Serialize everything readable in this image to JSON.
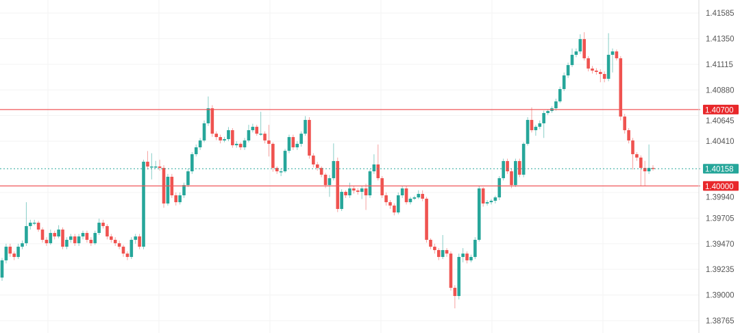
{
  "chart_data": {
    "type": "candlestick",
    "title": "",
    "xlabel": "",
    "ylabel": "",
    "ylim": [
      1.387,
      1.417
    ],
    "y_ticks": [
      "1.41585",
      "1.41350",
      "1.41115",
      "1.40880",
      "1.40645",
      "1.40410",
      "1.39940",
      "1.39705",
      "1.39470",
      "1.39235",
      "1.39000",
      "1.38765"
    ],
    "grid": true,
    "colors": {
      "up": "#26a69a",
      "down": "#ef5350",
      "level_line": "#f0575a",
      "price_line": "#26a69a",
      "axis_text": "#555555"
    },
    "levels": [
      {
        "label": "1.40700",
        "value": 1.407,
        "color": "#e8272a"
      },
      {
        "label": "1.40000",
        "value": 1.4,
        "color": "#e8272a"
      }
    ],
    "last_price": {
      "label": "1.40158",
      "value": 1.40158,
      "color": "#26a69a"
    },
    "candles_ohlc": [
      [
        1.3916,
        1.3934,
        1.3913,
        1.39318
      ],
      [
        1.39318,
        1.3947,
        1.3929,
        1.39443
      ],
      [
        1.39443,
        1.3947,
        1.3935,
        1.3938
      ],
      [
        1.3938,
        1.394,
        1.3932,
        1.39349
      ],
      [
        1.39349,
        1.3947,
        1.3933,
        1.39443
      ],
      [
        1.39443,
        1.395,
        1.3942,
        1.39475
      ],
      [
        1.39475,
        1.39851,
        1.3945,
        1.39632
      ],
      [
        1.39632,
        1.3969,
        1.396,
        1.39663
      ],
      [
        1.39663,
        1.3969,
        1.3964,
        1.39663
      ],
      [
        1.39663,
        1.3968,
        1.3958,
        1.396
      ],
      [
        1.396,
        1.3962,
        1.3948,
        1.39506
      ],
      [
        1.39506,
        1.3953,
        1.3945,
        1.39475
      ],
      [
        1.39475,
        1.396,
        1.3946,
        1.39569
      ],
      [
        1.39569,
        1.3959,
        1.3951,
        1.39537
      ],
      [
        1.39537,
        1.3964,
        1.3952,
        1.396
      ],
      [
        1.396,
        1.3962,
        1.3942,
        1.39443
      ],
      [
        1.39443,
        1.3953,
        1.3942,
        1.39506
      ],
      [
        1.39506,
        1.3956,
        1.3948,
        1.39537
      ],
      [
        1.39537,
        1.3956,
        1.3945,
        1.39475
      ],
      [
        1.39475,
        1.3956,
        1.3945,
        1.39537
      ],
      [
        1.39537,
        1.3959,
        1.3951,
        1.39569
      ],
      [
        1.39569,
        1.3959,
        1.3948,
        1.39506
      ],
      [
        1.39506,
        1.3953,
        1.3945,
        1.39475
      ],
      [
        1.39475,
        1.3959,
        1.3946,
        1.39569
      ],
      [
        1.39569,
        1.397,
        1.3955,
        1.39663
      ],
      [
        1.39663,
        1.3969,
        1.3961,
        1.39632
      ],
      [
        1.39632,
        1.3965,
        1.3951,
        1.39537
      ],
      [
        1.39537,
        1.3956,
        1.3948,
        1.39506
      ],
      [
        1.39506,
        1.3953,
        1.3945,
        1.39475
      ],
      [
        1.39475,
        1.395,
        1.3942,
        1.39443
      ],
      [
        1.39443,
        1.3946,
        1.3935,
        1.3938
      ],
      [
        1.3938,
        1.394,
        1.3932,
        1.39349
      ],
      [
        1.39349,
        1.3953,
        1.3933,
        1.39506
      ],
      [
        1.39506,
        1.3956,
        1.3947,
        1.39537
      ],
      [
        1.39537,
        1.3956,
        1.3942,
        1.39443
      ],
      [
        1.39443,
        1.4024,
        1.3942,
        1.40222
      ],
      [
        1.40222,
        1.4032,
        1.4015,
        1.40178
      ],
      [
        1.40178,
        1.403,
        1.4006,
        1.40178
      ],
      [
        1.40178,
        1.4023,
        1.4016,
        1.40178
      ],
      [
        1.40178,
        1.4024,
        1.4014,
        1.40165
      ],
      [
        1.40165,
        1.4019,
        1.398,
        1.39839
      ],
      [
        1.39839,
        1.4011,
        1.3982,
        1.40084
      ],
      [
        1.40084,
        1.4011,
        1.3989,
        1.39914
      ],
      [
        1.39914,
        1.3994,
        1.3982,
        1.39851
      ],
      [
        1.39851,
        1.3994,
        1.3983,
        1.39914
      ],
      [
        1.39914,
        1.4003,
        1.3989,
        1.40008
      ],
      [
        1.40008,
        1.4016,
        1.3999,
        1.40134
      ],
      [
        1.40134,
        1.4031,
        1.4011,
        1.40291
      ],
      [
        1.40291,
        1.4038,
        1.4027,
        1.40354
      ],
      [
        1.40354,
        1.4044,
        1.4033,
        1.40417
      ],
      [
        1.40417,
        1.406,
        1.404,
        1.40574
      ],
      [
        1.40574,
        1.4082,
        1.4055,
        1.40712
      ],
      [
        1.40712,
        1.4074,
        1.4045,
        1.40479
      ],
      [
        1.40479,
        1.405,
        1.4042,
        1.40448
      ],
      [
        1.40448,
        1.4047,
        1.4039,
        1.40417
      ],
      [
        1.40417,
        1.4045,
        1.404,
        1.40429
      ],
      [
        1.40429,
        1.4054,
        1.4041,
        1.40511
      ],
      [
        1.40511,
        1.4053,
        1.4035,
        1.40373
      ],
      [
        1.40373,
        1.4041,
        1.4035,
        1.40386
      ],
      [
        1.40386,
        1.404,
        1.4033,
        1.40354
      ],
      [
        1.40354,
        1.4044,
        1.4033,
        1.40417
      ],
      [
        1.40417,
        1.4056,
        1.404,
        1.40511
      ],
      [
        1.40511,
        1.4057,
        1.4049,
        1.40542
      ],
      [
        1.40542,
        1.4056,
        1.4046,
        1.40479
      ],
      [
        1.40479,
        1.4068,
        1.4046,
        1.40479
      ],
      [
        1.40479,
        1.405,
        1.4039,
        1.40417
      ],
      [
        1.40417,
        1.4056,
        1.4027,
        1.40386
      ],
      [
        1.40386,
        1.404,
        1.4013,
        1.40165
      ],
      [
        1.40165,
        1.4018,
        1.4011,
        1.40134
      ],
      [
        1.40134,
        1.4016,
        1.4009,
        1.40134
      ],
      [
        1.40134,
        1.4034,
        1.4012,
        1.40322
      ],
      [
        1.40322,
        1.4047,
        1.403,
        1.40448
      ],
      [
        1.40448,
        1.4047,
        1.4033,
        1.40354
      ],
      [
        1.40354,
        1.4041,
        1.4033,
        1.40386
      ],
      [
        1.40386,
        1.405,
        1.4036,
        1.40479
      ],
      [
        1.40479,
        1.4064,
        1.4046,
        1.40605
      ],
      [
        1.40605,
        1.4063,
        1.4025,
        1.40278
      ],
      [
        1.40278,
        1.403,
        1.4017,
        1.40197
      ],
      [
        1.40197,
        1.4022,
        1.4014,
        1.40165
      ],
      [
        1.40165,
        1.4018,
        1.4008,
        1.40103
      ],
      [
        1.40103,
        1.4012,
        1.3998,
        1.40008
      ],
      [
        1.40008,
        1.401,
        1.399,
        1.40071
      ],
      [
        1.40071,
        1.4039,
        1.4005,
        1.40228
      ],
      [
        1.40228,
        1.4026,
        1.3976,
        1.39789
      ],
      [
        1.39789,
        1.3997,
        1.3977,
        1.39946
      ],
      [
        1.39946,
        1.3996,
        1.3989,
        1.39914
      ],
      [
        1.39914,
        1.4003,
        1.3989,
        1.39977
      ],
      [
        1.39977,
        1.4,
        1.3993,
        1.39958
      ],
      [
        1.39958,
        1.3998,
        1.3992,
        1.39946
      ],
      [
        1.39946,
        1.4,
        1.3988,
        1.39977
      ],
      [
        1.39977,
        1.4002,
        1.3978,
        1.39914
      ],
      [
        1.39914,
        1.4015,
        1.3989,
        1.40134
      ],
      [
        1.40134,
        1.4029,
        1.4011,
        1.40197
      ],
      [
        1.40197,
        1.4038,
        1.4005,
        1.40071
      ],
      [
        1.40071,
        1.4009,
        1.3989,
        1.39914
      ],
      [
        1.39914,
        1.3994,
        1.3982,
        1.39851
      ],
      [
        1.39851,
        1.3987,
        1.3979,
        1.3982
      ],
      [
        1.3982,
        1.3984,
        1.3973,
        1.39757
      ],
      [
        1.39757,
        1.3994,
        1.3974,
        1.39914
      ],
      [
        1.39914,
        1.4,
        1.3989,
        1.39977
      ],
      [
        1.39977,
        1.4,
        1.3983,
        1.39851
      ],
      [
        1.39851,
        1.399,
        1.3983,
        1.39883
      ],
      [
        1.39883,
        1.3991,
        1.3987,
        1.39895
      ],
      [
        1.39895,
        1.3996,
        1.3988,
        1.39927
      ],
      [
        1.39927,
        1.3996,
        1.3986,
        1.39883
      ],
      [
        1.39883,
        1.399,
        1.3948,
        1.39506
      ],
      [
        1.39506,
        1.3952,
        1.3942,
        1.39443
      ],
      [
        1.39443,
        1.3947,
        1.3938,
        1.39412
      ],
      [
        1.39412,
        1.3943,
        1.3932,
        1.39349
      ],
      [
        1.39349,
        1.3955,
        1.3933,
        1.39412
      ],
      [
        1.39412,
        1.3943,
        1.3935,
        1.3938
      ],
      [
        1.3938,
        1.394,
        1.3904,
        1.39066
      ],
      [
        1.39066,
        1.3909,
        1.38878,
        1.38991
      ],
      [
        1.38991,
        1.3938,
        1.3896,
        1.39349
      ],
      [
        1.39349,
        1.3943,
        1.393,
        1.3938
      ],
      [
        1.3938,
        1.394,
        1.3929,
        1.39318
      ],
      [
        1.39318,
        1.3937,
        1.393,
        1.39349
      ],
      [
        1.39349,
        1.3953,
        1.3933,
        1.39506
      ],
      [
        1.39506,
        1.4,
        1.3949,
        1.39977
      ],
      [
        1.39977,
        1.3999,
        1.3981,
        1.39839
      ],
      [
        1.39839,
        1.3987,
        1.3982,
        1.39851
      ],
      [
        1.39851,
        1.3988,
        1.3983,
        1.39864
      ],
      [
        1.39864,
        1.3991,
        1.3984,
        1.39895
      ],
      [
        1.39895,
        1.4009,
        1.3987,
        1.40071
      ],
      [
        1.40071,
        1.4025,
        1.4005,
        1.40228
      ],
      [
        1.40228,
        1.4025,
        1.4011,
        1.40134
      ],
      [
        1.40134,
        1.4016,
        1.3998,
        1.40008
      ],
      [
        1.40008,
        1.4025,
        1.3999,
        1.40228
      ],
      [
        1.40228,
        1.4025,
        1.4008,
        1.40103
      ],
      [
        1.40103,
        1.404,
        1.4008,
        1.40386
      ],
      [
        1.40386,
        1.4063,
        1.4037,
        1.40605
      ],
      [
        1.40605,
        1.4072,
        1.4049,
        1.40511
      ],
      [
        1.40511,
        1.4056,
        1.4046,
        1.40542
      ],
      [
        1.40542,
        1.406,
        1.4052,
        1.40574
      ],
      [
        1.40574,
        1.4069,
        1.4044,
        1.40668
      ],
      [
        1.40668,
        1.407,
        1.4065,
        1.40687
      ],
      [
        1.40687,
        1.4073,
        1.4067,
        1.40712
      ],
      [
        1.40712,
        1.408,
        1.4069,
        1.40775
      ],
      [
        1.40775,
        1.4091,
        1.4076,
        1.40888
      ],
      [
        1.40888,
        1.4104,
        1.4087,
        1.41013
      ],
      [
        1.41013,
        1.4113,
        1.4099,
        1.41108
      ],
      [
        1.41108,
        1.4126,
        1.4109,
        1.41202
      ],
      [
        1.41202,
        1.4126,
        1.4118,
        1.41233
      ],
      [
        1.41233,
        1.4139,
        1.4121,
        1.41346
      ],
      [
        1.41346,
        1.41409,
        1.4115,
        1.4117
      ],
      [
        1.4117,
        1.4119,
        1.4105,
        1.41076
      ],
      [
        1.41076,
        1.411,
        1.4103,
        1.41057
      ],
      [
        1.41057,
        1.4108,
        1.4102,
        1.41045
      ],
      [
        1.41045,
        1.4107,
        1.4095,
        1.41026
      ],
      [
        1.41026,
        1.4105,
        1.4095,
        1.40982
      ],
      [
        1.40982,
        1.414,
        1.4096,
        1.41202
      ],
      [
        1.41202,
        1.4126,
        1.4104,
        1.41233
      ],
      [
        1.41233,
        1.4125,
        1.4115,
        1.4117
      ],
      [
        1.4117,
        1.4119,
        1.406,
        1.40636
      ],
      [
        1.40636,
        1.4066,
        1.4048,
        1.40511
      ],
      [
        1.40511,
        1.4053,
        1.4039,
        1.40417
      ],
      [
        1.40417,
        1.4044,
        1.4015,
        1.40291
      ],
      [
        1.40291,
        1.4031,
        1.4023,
        1.4026
      ],
      [
        1.4026,
        1.4028,
        1.4,
        1.40165
      ],
      [
        1.40165,
        1.4023,
        1.4,
        1.40134
      ],
      [
        1.40134,
        1.4038,
        1.4011,
        1.40165
      ],
      [
        1.40165,
        1.4019,
        1.4014,
        1.40158
      ]
    ]
  }
}
